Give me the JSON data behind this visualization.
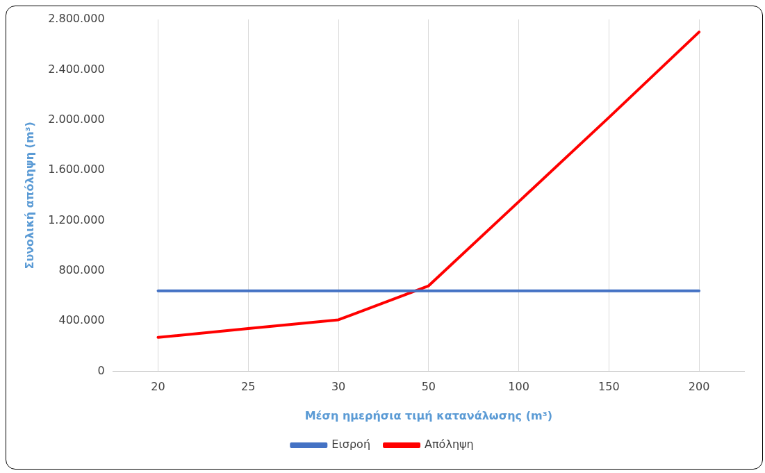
{
  "chart_data": {
    "type": "line",
    "xlabel": "Μέση ημερήσια τιμή κατανάλωσης (m³)",
    "ylabel": "Συνολική απόληψη (m³)",
    "categories": [
      "20",
      "25",
      "30",
      "50",
      "100",
      "150",
      "200"
    ],
    "series": [
      {
        "name": "Εισροή",
        "color": "#4472c4",
        "values": [
          640000,
          640000,
          640000,
          640000,
          640000,
          640000,
          640000
        ]
      },
      {
        "name": "Απόληψη",
        "color": "#ff0000",
        "values": [
          270000,
          340000,
          410000,
          680000,
          1350000,
          2020000,
          2700000
        ]
      }
    ],
    "ylim": [
      0,
      2800000
    ],
    "yticks": [
      0,
      {
        "value": 400000,
        "label": "400.000"
      },
      {
        "value": 800000,
        "label": "800.000"
      },
      {
        "value": 1200000,
        "label": "1.200.000"
      },
      {
        "value": 1600000,
        "label": "1.600.000"
      },
      {
        "value": 2000000,
        "label": "2.000.000"
      },
      {
        "value": 2400000,
        "label": "2.400.000"
      },
      {
        "value": 2800000,
        "label": "2.800.000"
      }
    ],
    "grid": "x",
    "legend": "bottom",
    "marker": "none",
    "line_style": "solid"
  }
}
